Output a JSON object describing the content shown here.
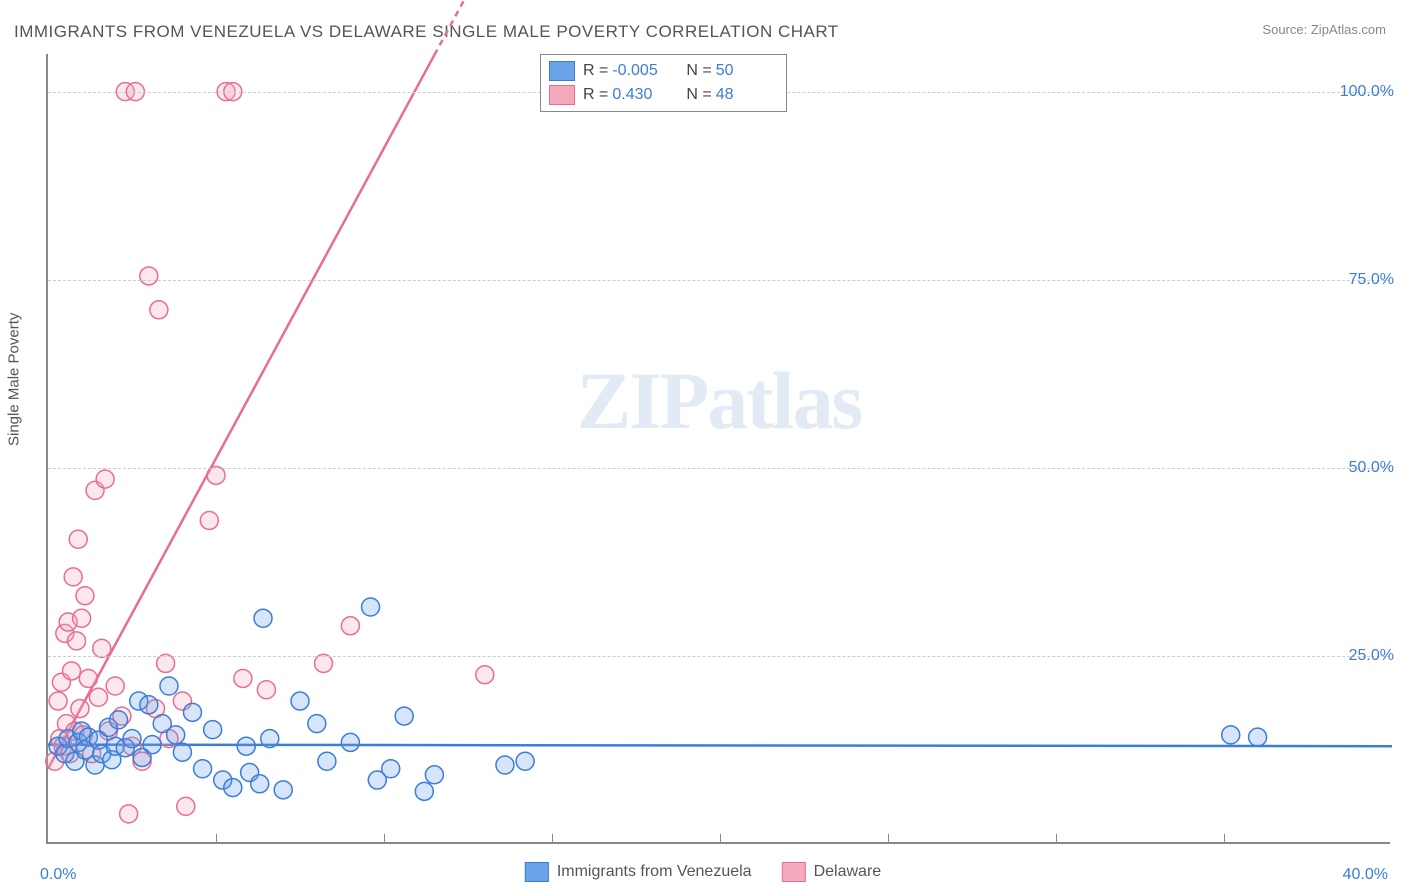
{
  "title": "IMMIGRANTS FROM VENEZUELA VS DELAWARE SINGLE MALE POVERTY CORRELATION CHART",
  "source_label": "Source:",
  "source_name": "ZipAtlas.com",
  "y_axis_label": "Single Male Poverty",
  "watermark": {
    "zip": "ZIP",
    "atlas": "atlas"
  },
  "chart": {
    "type": "scatter",
    "xlim": [
      0,
      40
    ],
    "ylim": [
      0,
      105
    ],
    "x_min_label": "0.0%",
    "x_max_label": "40.0%",
    "y_ticks": [
      25,
      50,
      75,
      100
    ],
    "y_tick_labels": [
      "25.0%",
      "50.0%",
      "75.0%",
      "100.0%"
    ],
    "x_minor_ticks": [
      5,
      10,
      15,
      20,
      25,
      30,
      35
    ],
    "grid_color": "#cccccc",
    "axis_color": "#888888",
    "label_color": "#3b7dd8",
    "background_color": "#ffffff",
    "marker_radius": 9,
    "marker_stroke_width": 1.5,
    "marker_fill_opacity": 0.28,
    "line_width": 2.5,
    "series": [
      {
        "name": "Immigrants from Venezuela",
        "color": "#6aa3e8",
        "stroke": "#3b7dd8",
        "R": "-0.005",
        "N": "50",
        "trend": {
          "y_at_x0": 13.2,
          "y_at_xmax": 13.0,
          "dash": false
        },
        "points": [
          [
            0.3,
            13
          ],
          [
            0.5,
            12
          ],
          [
            0.6,
            14
          ],
          [
            0.8,
            11
          ],
          [
            0.9,
            13.5
          ],
          [
            1.0,
            15
          ],
          [
            1.1,
            12.5
          ],
          [
            1.2,
            14.2
          ],
          [
            1.4,
            10.5
          ],
          [
            1.5,
            13.8
          ],
          [
            1.6,
            12
          ],
          [
            1.8,
            15.5
          ],
          [
            1.9,
            11.2
          ],
          [
            2.0,
            13
          ],
          [
            2.1,
            16.5
          ],
          [
            2.3,
            12.8
          ],
          [
            2.5,
            14
          ],
          [
            2.7,
            19
          ],
          [
            2.8,
            11.5
          ],
          [
            3.0,
            18.5
          ],
          [
            3.1,
            13.2
          ],
          [
            3.4,
            16
          ],
          [
            3.6,
            21
          ],
          [
            3.8,
            14.5
          ],
          [
            4.0,
            12.2
          ],
          [
            4.3,
            17.5
          ],
          [
            4.6,
            10
          ],
          [
            4.9,
            15.2
          ],
          [
            5.2,
            8.5
          ],
          [
            5.5,
            7.5
          ],
          [
            5.9,
            13
          ],
          [
            6.0,
            9.5
          ],
          [
            6.3,
            8
          ],
          [
            6.4,
            30
          ],
          [
            6.6,
            14
          ],
          [
            7.0,
            7.2
          ],
          [
            7.5,
            19
          ],
          [
            8.0,
            16
          ],
          [
            8.3,
            11
          ],
          [
            9.0,
            13.5
          ],
          [
            9.6,
            31.5
          ],
          [
            9.8,
            8.5
          ],
          [
            10.2,
            10
          ],
          [
            10.6,
            17
          ],
          [
            11.2,
            7
          ],
          [
            11.5,
            9.2
          ],
          [
            13.6,
            10.5
          ],
          [
            14.2,
            11
          ],
          [
            35.2,
            14.5
          ],
          [
            36.0,
            14.2
          ]
        ]
      },
      {
        "name": "Delaware",
        "color": "#f4a9bd",
        "stroke": "#e86e91",
        "R": "0.430",
        "N": "48",
        "trend": {
          "y_at_x0": 10,
          "y_at_xmax": 340,
          "dash_from_x": 11.5
        },
        "points": [
          [
            0.2,
            11
          ],
          [
            0.3,
            19
          ],
          [
            0.35,
            14
          ],
          [
            0.4,
            21.5
          ],
          [
            0.45,
            13
          ],
          [
            0.5,
            28
          ],
          [
            0.55,
            16
          ],
          [
            0.6,
            29.5
          ],
          [
            0.65,
            12
          ],
          [
            0.7,
            23
          ],
          [
            0.75,
            35.5
          ],
          [
            0.8,
            15
          ],
          [
            0.85,
            27
          ],
          [
            0.9,
            40.5
          ],
          [
            0.95,
            18
          ],
          [
            1.0,
            30
          ],
          [
            1.05,
            14.5
          ],
          [
            1.1,
            33
          ],
          [
            1.2,
            22
          ],
          [
            1.3,
            12
          ],
          [
            1.4,
            47
          ],
          [
            1.5,
            19.5
          ],
          [
            1.6,
            26
          ],
          [
            1.7,
            48.5
          ],
          [
            1.8,
            15
          ],
          [
            2.0,
            21
          ],
          [
            2.2,
            17
          ],
          [
            2.3,
            100
          ],
          [
            2.4,
            4
          ],
          [
            2.5,
            13
          ],
          [
            2.6,
            100
          ],
          [
            2.8,
            11
          ],
          [
            3.0,
            75.5
          ],
          [
            3.2,
            18
          ],
          [
            3.3,
            71
          ],
          [
            3.5,
            24
          ],
          [
            3.6,
            14
          ],
          [
            4.0,
            19
          ],
          [
            4.1,
            5
          ],
          [
            4.8,
            43
          ],
          [
            5.0,
            49
          ],
          [
            5.3,
            100
          ],
          [
            5.5,
            100
          ],
          [
            5.8,
            22
          ],
          [
            6.5,
            20.5
          ],
          [
            8.2,
            24
          ],
          [
            9.0,
            29
          ],
          [
            13.0,
            22.5
          ]
        ]
      }
    ]
  },
  "legend_top": {
    "r_label": "R =",
    "n_label": "N ="
  },
  "bottom_legend": [
    {
      "key": "series.0.name",
      "color": "#6aa3e8",
      "stroke": "#3b7dd8"
    },
    {
      "key": "series.1.name",
      "color": "#f4a9bd",
      "stroke": "#e86e91"
    }
  ]
}
